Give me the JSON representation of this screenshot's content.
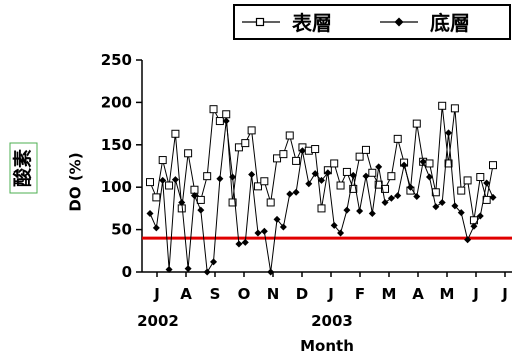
{
  "chart_data": {
    "type": "line",
    "ylabel": "DO (%)",
    "xlabel": "Month",
    "ylim": [
      0,
      250
    ],
    "yticks": [
      0,
      50,
      100,
      150,
      200,
      250
    ],
    "months": [
      "J",
      "A",
      "S",
      "O",
      "N",
      "D",
      "J",
      "F",
      "M",
      "A",
      "M",
      "J",
      "J"
    ],
    "years": [
      "2002",
      "2003"
    ],
    "side_label": "酸素",
    "legend_position": "top-right",
    "reference_line": {
      "value": 40,
      "color": "#e00000"
    },
    "series": [
      {
        "name": "表層",
        "marker": "open-square",
        "values": [
          106,
          88,
          132,
          102,
          163,
          75,
          140,
          97,
          85,
          113,
          192,
          178,
          186,
          82,
          147,
          152,
          167,
          101,
          107,
          82,
          134,
          139,
          161,
          131,
          147,
          143,
          145,
          75,
          120,
          128,
          102,
          118,
          98,
          136,
          144,
          117,
          103,
          98,
          113,
          157,
          129,
          96,
          175,
          130,
          128,
          94,
          196,
          128,
          193,
          96,
          108,
          61,
          112,
          85,
          126
        ]
      },
      {
        "name": "底層",
        "marker": "filled-diamond",
        "values": [
          69,
          52,
          108,
          3,
          109,
          82,
          4,
          90,
          73,
          0,
          12,
          110,
          178,
          112,
          33,
          35,
          115,
          46,
          48,
          0,
          62,
          53,
          92,
          94,
          143,
          104,
          116,
          108,
          117,
          55,
          46,
          73,
          114,
          72,
          113,
          69,
          124,
          82,
          87,
          90,
          126,
          100,
          89,
          130,
          112,
          77,
          82,
          164,
          78,
          70,
          38,
          54,
          66,
          105,
          88
        ]
      }
    ]
  }
}
